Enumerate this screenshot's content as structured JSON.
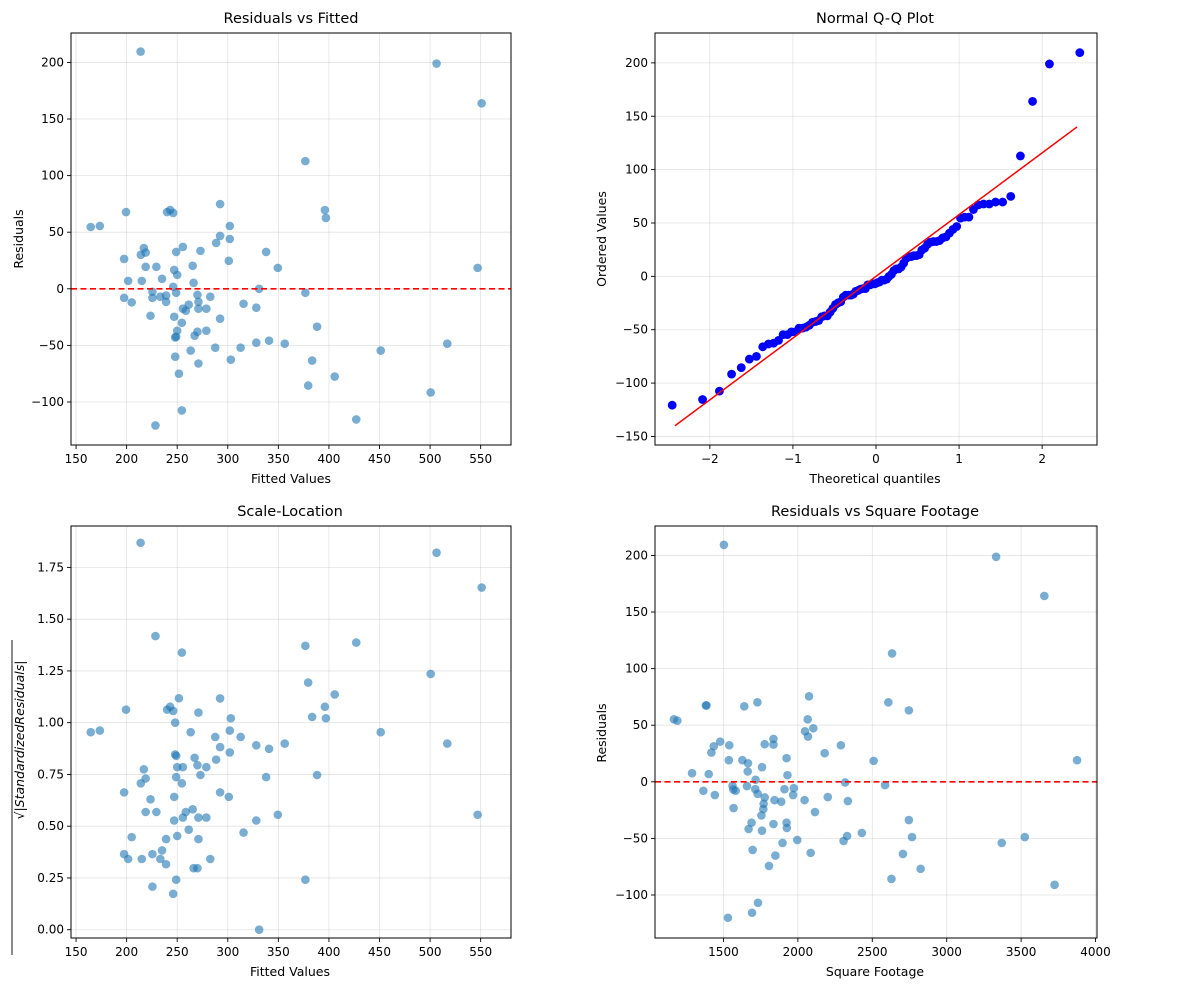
{
  "figure": {
    "background": "#ffffff",
    "point_color": "#1f77b4",
    "point_alpha": 0.6,
    "qq_point_color": "#0000ff",
    "line_color": "#ff0000"
  },
  "chart_data": [
    {
      "id": "residuals_vs_fitted",
      "type": "scatter",
      "title": "Residuals vs Fitted",
      "xlabel": "Fitted Values",
      "ylabel": "Residuals",
      "xlim": [
        145,
        580
      ],
      "ylim": [
        -138,
        226
      ],
      "xticks": [
        150,
        200,
        250,
        300,
        350,
        400,
        450,
        500,
        550
      ],
      "yticks": [
        -100,
        -50,
        0,
        50,
        100,
        150,
        200
      ],
      "ytick_labels": [
        "−100",
        "−50",
        "0",
        "50",
        "100",
        "150",
        "200"
      ],
      "grid": true,
      "reference_line": {
        "y": 0,
        "style": "dashed",
        "color": "#ff0000"
      },
      "x": [
        164.5,
        173.5,
        213.8,
        199.4,
        197.5,
        201.5,
        197.5,
        205,
        214,
        217,
        218.8,
        218.8,
        215,
        225.5,
        225.5,
        223.6,
        229.4,
        235,
        233.3,
        239,
        239,
        228.5,
        240,
        243,
        246,
        249,
        255.6,
        247,
        250,
        246,
        249,
        247,
        250,
        248,
        249,
        248,
        251.7,
        254.6,
        254.6,
        255.6,
        258.5,
        261.4,
        263.3,
        265.3,
        266.2,
        267.2,
        270,
        270,
        271,
        271,
        271,
        273,
        278.8,
        278.8,
        282.7,
        287.6,
        288.5,
        292.4,
        292.4,
        292.4,
        301,
        302,
        302,
        303,
        312.7,
        315.6,
        328.2,
        328.2,
        331,
        337.9,
        340.8,
        349.5,
        356.3,
        376.7,
        376.7,
        379.5,
        383.4,
        388.3,
        396,
        397,
        405.7,
        427,
        451.2,
        500.6,
        506.4,
        517,
        547,
        551
      ],
      "y": [
        54.6,
        55.5,
        209.6,
        67.8,
        26.4,
        7,
        -8,
        -12,
        30,
        36,
        32,
        19.4,
        7,
        -2.6,
        -8,
        -23.8,
        19.4,
        8.8,
        -7,
        -6,
        -11.5,
        -120.7,
        67.8,
        69.6,
        67,
        32.6,
        37,
        16.7,
        12.3,
        1.8,
        -3.5,
        -24.7,
        -37,
        -43,
        -42.3,
        -60,
        -75,
        -107.5,
        -30,
        -17.6,
        -19.4,
        -14,
        -54.6,
        20.3,
        5.3,
        -41.4,
        -37.9,
        -5.3,
        -11.5,
        -17.6,
        -66,
        33.5,
        -17.6,
        -37,
        -7,
        -52,
        40.5,
        74.9,
        46.7,
        -26.4,
        24.7,
        55.5,
        44,
        -62.6,
        -52,
        -13.2,
        -16.7,
        -47.6,
        0,
        32.6,
        -45.8,
        18.5,
        -48.5,
        112.8,
        -3.5,
        -85.5,
        -63.4,
        -33.5,
        69.6,
        62.6,
        -77.5,
        -115.4,
        -54.6,
        -91.6,
        199,
        -48.5,
        18.5,
        163.9
      ]
    },
    {
      "id": "normal_qq",
      "type": "scatter",
      "title": "Normal Q-Q Plot",
      "xlabel": "Theoretical quantiles",
      "ylabel": "Ordered Values",
      "xlim": [
        -2.66,
        2.66
      ],
      "ylim": [
        -158,
        228
      ],
      "xticks": [
        -2,
        -1,
        0,
        1,
        2
      ],
      "xtick_labels": [
        "−2",
        "−1",
        "0",
        "1",
        "2"
      ],
      "yticks": [
        -150,
        -100,
        -50,
        0,
        50,
        100,
        150,
        200
      ],
      "ytick_labels": [
        "−150",
        "−100",
        "−50",
        "0",
        "50",
        "100",
        "150",
        "200"
      ],
      "grid": true,
      "points_source": "sorted residuals of Residuals vs Fitted vs normal theoretical quantiles",
      "fit_line": {
        "x": [
          -2.42,
          2.42
        ],
        "y": [
          -140,
          140
        ],
        "color": "#ff0000"
      }
    },
    {
      "id": "scale_location",
      "type": "scatter",
      "title": "Scale-Location",
      "xlabel": "Fitted Values",
      "ylabel": "√|StandardizedResiduals|",
      "xlim": [
        145,
        580
      ],
      "ylim": [
        -0.04,
        1.95
      ],
      "xticks": [
        150,
        200,
        250,
        300,
        350,
        400,
        450,
        500,
        550
      ],
      "yticks": [
        0.0,
        0.25,
        0.5,
        0.75,
        1.0,
        1.25,
        1.5,
        1.75
      ],
      "ytick_labels": [
        "0.00",
        "0.25",
        "0.50",
        "0.75",
        "1.00",
        "1.25",
        "1.50",
        "1.75"
      ],
      "grid": true,
      "residual_scale": 60
    },
    {
      "id": "residuals_vs_sqft",
      "type": "scatter",
      "title": "Residuals vs Square Footage",
      "xlabel": "Square Footage",
      "ylabel": "Residuals",
      "xlim": [
        1040,
        4010
      ],
      "ylim": [
        -138,
        226
      ],
      "xticks": [
        1500,
        2000,
        2500,
        3000,
        3500,
        4000
      ],
      "yticks": [
        -100,
        -50,
        0,
        50,
        100,
        150,
        200
      ],
      "ytick_labels": [
        "−100",
        "−50",
        "0",
        "50",
        "100",
        "150",
        "200"
      ],
      "grid": true,
      "reference_line": {
        "y": 0,
        "style": "dashed",
        "color": "#ff0000"
      },
      "x": [
        1167,
        1190,
        1503,
        1382,
        1386,
        1640,
        1728,
        2075,
        2066,
        2104,
        2048,
        2068,
        1478,
        1435,
        1419,
        1539,
        1536,
        1836,
        1836,
        1777,
        1924,
        1930,
        1627,
        1665,
        1663,
        1759,
        1716,
        1289,
        1401,
        1365,
        1442,
        1561,
        1566,
        1582,
        1568,
        1658,
        1714,
        1730,
        1777,
        1770,
        1768,
        1755,
        1843,
        1888,
        1910,
        1973,
        1968,
        2045,
        1689,
        1669,
        1759,
        1836,
        1924,
        1926,
        1897,
        1996,
        1696,
        1849,
        1806,
        2086,
        2115,
        2201,
        2180,
        2289,
        2318,
        2336,
        2331,
        2307,
        2430,
        2509,
        2586,
        2608,
        2633,
        2629,
        2746,
        2746,
        2767,
        2706,
        2825,
        3332,
        3656,
        3370,
        3525,
        3725,
        3876,
        1530,
        1692,
        1732
      ],
      "y": [
        55.2,
        54,
        209.4,
        67.5,
        67.5,
        66.7,
        70.2,
        75.5,
        55.2,
        47.3,
        44.6,
        40,
        35.5,
        31.4,
        25.8,
        32.3,
        19.1,
        37.9,
        32.9,
        33.2,
        20.9,
        5.9,
        19.1,
        16.4,
        9.1,
        12.9,
        1.8,
        7.6,
        6.8,
        -7.9,
        -11.7,
        -3.5,
        -6.8,
        -7.9,
        -23.2,
        -3.8,
        -6.5,
        -10.6,
        -13.8,
        -19.4,
        -24.1,
        -29.7,
        -16.2,
        -17.6,
        -6.5,
        -5.6,
        -11.7,
        -16.2,
        -36.1,
        -41.7,
        -43.2,
        -37.3,
        -36.1,
        -40.8,
        -54,
        -51.4,
        -60.2,
        -65.2,
        -74.3,
        -62.8,
        -26.7,
        -13.5,
        25.3,
        32.3,
        -0.6,
        -17,
        -47.9,
        -52.3,
        -45.2,
        18.5,
        -2.9,
        70.2,
        113.4,
        -85.8,
        63.1,
        -33.8,
        -48.8,
        -63.7,
        -76.9,
        198.8,
        164.2,
        -54,
        -48.8,
        -91,
        19.1,
        -120.1,
        -115.7,
        -106.9
      ]
    }
  ]
}
